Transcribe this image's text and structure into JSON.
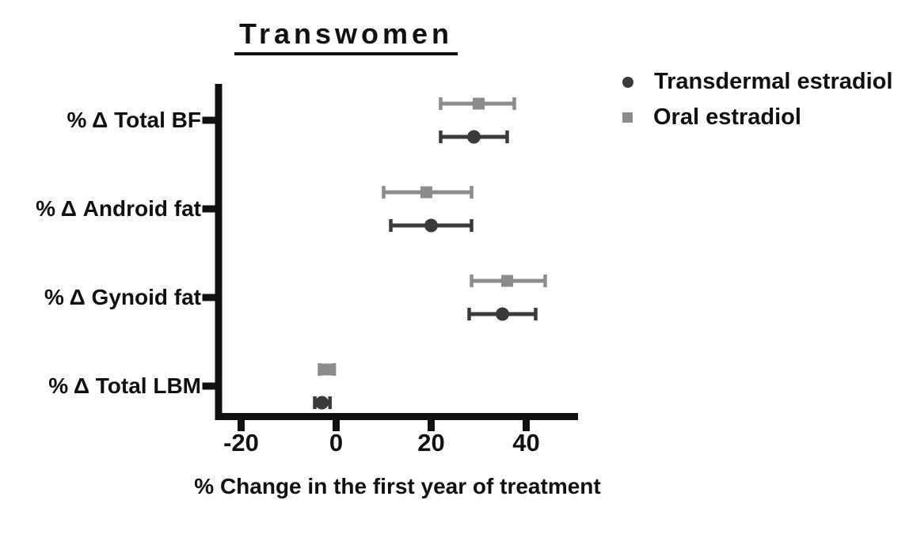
{
  "chart_data": {
    "type": "scatter",
    "subtype": "horizontal-dot-plot-with-error-bars",
    "title": "Transwomen",
    "xlabel": "% Change in the first year of treatment",
    "ylabel": "",
    "categories": [
      "% Δ Total BF",
      "% Δ Android fat",
      "% Δ Gynoid fat",
      "% Δ Total LBM"
    ],
    "x_ticks": [
      -20,
      0,
      20,
      40
    ],
    "xlim": [
      -25.5,
      51
    ],
    "grid": false,
    "legend_position": "top-right",
    "axis_color": "#111111",
    "series": [
      {
        "name": "Transdermal estradiol",
        "marker": "circle",
        "color": "#3a3a3a",
        "points": [
          {
            "category": "% Δ Total BF",
            "mean": 29,
            "lo": 22,
            "hi": 36
          },
          {
            "category": "% Δ Android fat",
            "mean": 20,
            "lo": 11.5,
            "hi": 28.5
          },
          {
            "category": "% Δ Gynoid fat",
            "mean": 35,
            "lo": 28,
            "hi": 42
          },
          {
            "category": "% Δ Total LBM",
            "mean": -3,
            "lo": -4.5,
            "hi": -1.3
          }
        ]
      },
      {
        "name": "Oral estradiol",
        "marker": "square",
        "color": "#8c8c8c",
        "points": [
          {
            "category": "% Δ Total BF",
            "mean": 30,
            "lo": 22,
            "hi": 37.5
          },
          {
            "category": "% Δ Android fat",
            "mean": 19,
            "lo": 10,
            "hi": 28.5
          },
          {
            "category": "% Δ Gynoid fat",
            "mean": 36,
            "lo": 28.5,
            "hi": 44
          },
          {
            "category": "% Δ Total LBM",
            "mean": -2,
            "lo": -3.5,
            "hi": -0.4
          }
        ]
      }
    ]
  }
}
